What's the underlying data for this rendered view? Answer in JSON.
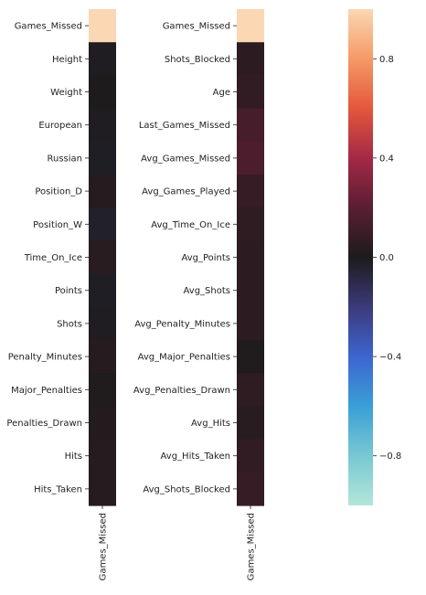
{
  "chart_data": {
    "type": "heatmap",
    "vmin": -1,
    "vmax": 1,
    "colorbar_ticks": [
      0.8,
      0.4,
      0.0,
      -0.4,
      -0.8
    ],
    "colorbar_tick_labels": [
      "0.8",
      "0.4",
      "0.0",
      "−0.4",
      "−0.8"
    ],
    "colormap_stops": [
      {
        "v": -1.0,
        "color": "#b2e6d9"
      },
      {
        "v": -0.8,
        "color": "#78c8d2"
      },
      {
        "v": -0.6,
        "color": "#3a9fd6"
      },
      {
        "v": -0.4,
        "color": "#3d65cf"
      },
      {
        "v": -0.2,
        "color": "#3c3a7a"
      },
      {
        "v": 0.0,
        "color": "#1d1b1c"
      },
      {
        "v": 0.2,
        "color": "#5a1e33"
      },
      {
        "v": 0.4,
        "color": "#a42945"
      },
      {
        "v": 0.6,
        "color": "#e4573c"
      },
      {
        "v": 0.8,
        "color": "#f59a66"
      },
      {
        "v": 1.0,
        "color": "#fbd7b3"
      }
    ],
    "heatmaps": [
      {
        "column": "Games_Missed",
        "rows": [
          "Games_Missed",
          "Height",
          "Weight",
          "European",
          "Russian",
          "Position_D",
          "Position_W",
          "Time_On_Ice",
          "Points",
          "Shots",
          "Penalty_Minutes",
          "Major_Penalties",
          "Penalties_Drawn",
          "Hits",
          "Hits_Taken"
        ],
        "values": [
          1.0,
          -0.01,
          0.0,
          -0.01,
          -0.02,
          0.03,
          -0.03,
          0.04,
          -0.02,
          -0.01,
          0.03,
          0.01,
          0.02,
          0.03,
          0.03
        ]
      },
      {
        "column": "Games_Missed",
        "rows": [
          "Games_Missed",
          "Shots_Blocked",
          "Age",
          "Last_Games_Missed",
          "Avg_Games_Missed",
          "Avg_Games_Played",
          "Avg_Time_On_Ice",
          "Avg_Points",
          "Avg_Shots",
          "Avg_Penalty_Minutes",
          "Avg_Major_Penalties",
          "Avg_Penalties_Drawn",
          "Avg_Hits",
          "Avg_Hits_Taken",
          "Avg_Shots_Blocked"
        ],
        "values": [
          1.0,
          0.05,
          0.07,
          0.13,
          0.15,
          0.08,
          0.06,
          0.05,
          0.05,
          0.05,
          0.01,
          0.06,
          0.04,
          0.07,
          0.08
        ]
      }
    ]
  }
}
